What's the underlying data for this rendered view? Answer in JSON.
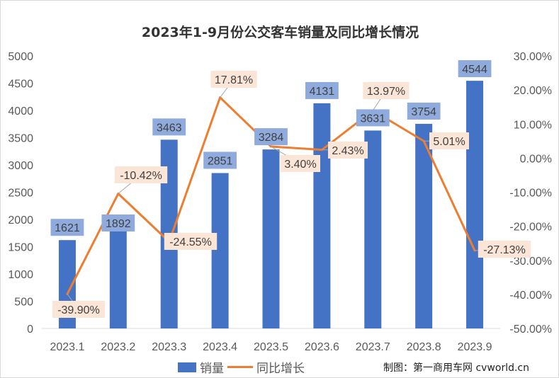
{
  "chart_data": {
    "type": "bar+line",
    "title": "2023年1-9月份公交客车销量及同比增长情况",
    "categories": [
      "2023.1",
      "2023.2",
      "2023.3",
      "2023.4",
      "2023.5",
      "2023.6",
      "2023.7",
      "2023.8",
      "2023.9"
    ],
    "series": [
      {
        "name": "销量",
        "type": "bar",
        "axis": "left",
        "color": "#4472c4",
        "values": [
          1621,
          1892,
          3463,
          2851,
          3284,
          4131,
          3631,
          3754,
          4544
        ],
        "labels": [
          "1621",
          "1892",
          "3463",
          "2851",
          "3284",
          "4131",
          "3631",
          "3754",
          "4544"
        ]
      },
      {
        "name": "同比增长",
        "type": "line",
        "axis": "right",
        "color": "#ed7d31",
        "values": [
          -39.9,
          -10.42,
          -24.55,
          17.81,
          3.4,
          2.43,
          13.97,
          5.01,
          -27.13
        ],
        "labels": [
          "-39.90%",
          "-10.42%",
          "-24.55%",
          "17.81%",
          "3.40%",
          "2.43%",
          "13.97%",
          "5.01%",
          "-27.13%"
        ]
      }
    ],
    "y_left": {
      "range": [
        0,
        5000
      ],
      "ticks": [
        "0",
        "500",
        "1000",
        "1500",
        "2000",
        "2500",
        "3000",
        "3500",
        "4000",
        "4500",
        "5000"
      ]
    },
    "y_right": {
      "range": [
        -50,
        30
      ],
      "ticks": [
        "-50.00%",
        "-40.00%",
        "-30.00%",
        "-20.00%",
        "-10.00%",
        "0.00%",
        "10.00%",
        "20.00%",
        "30.00%"
      ]
    },
    "legend_position": "bottom"
  },
  "credit": "制图：第一商用车网 cvworld.cn"
}
